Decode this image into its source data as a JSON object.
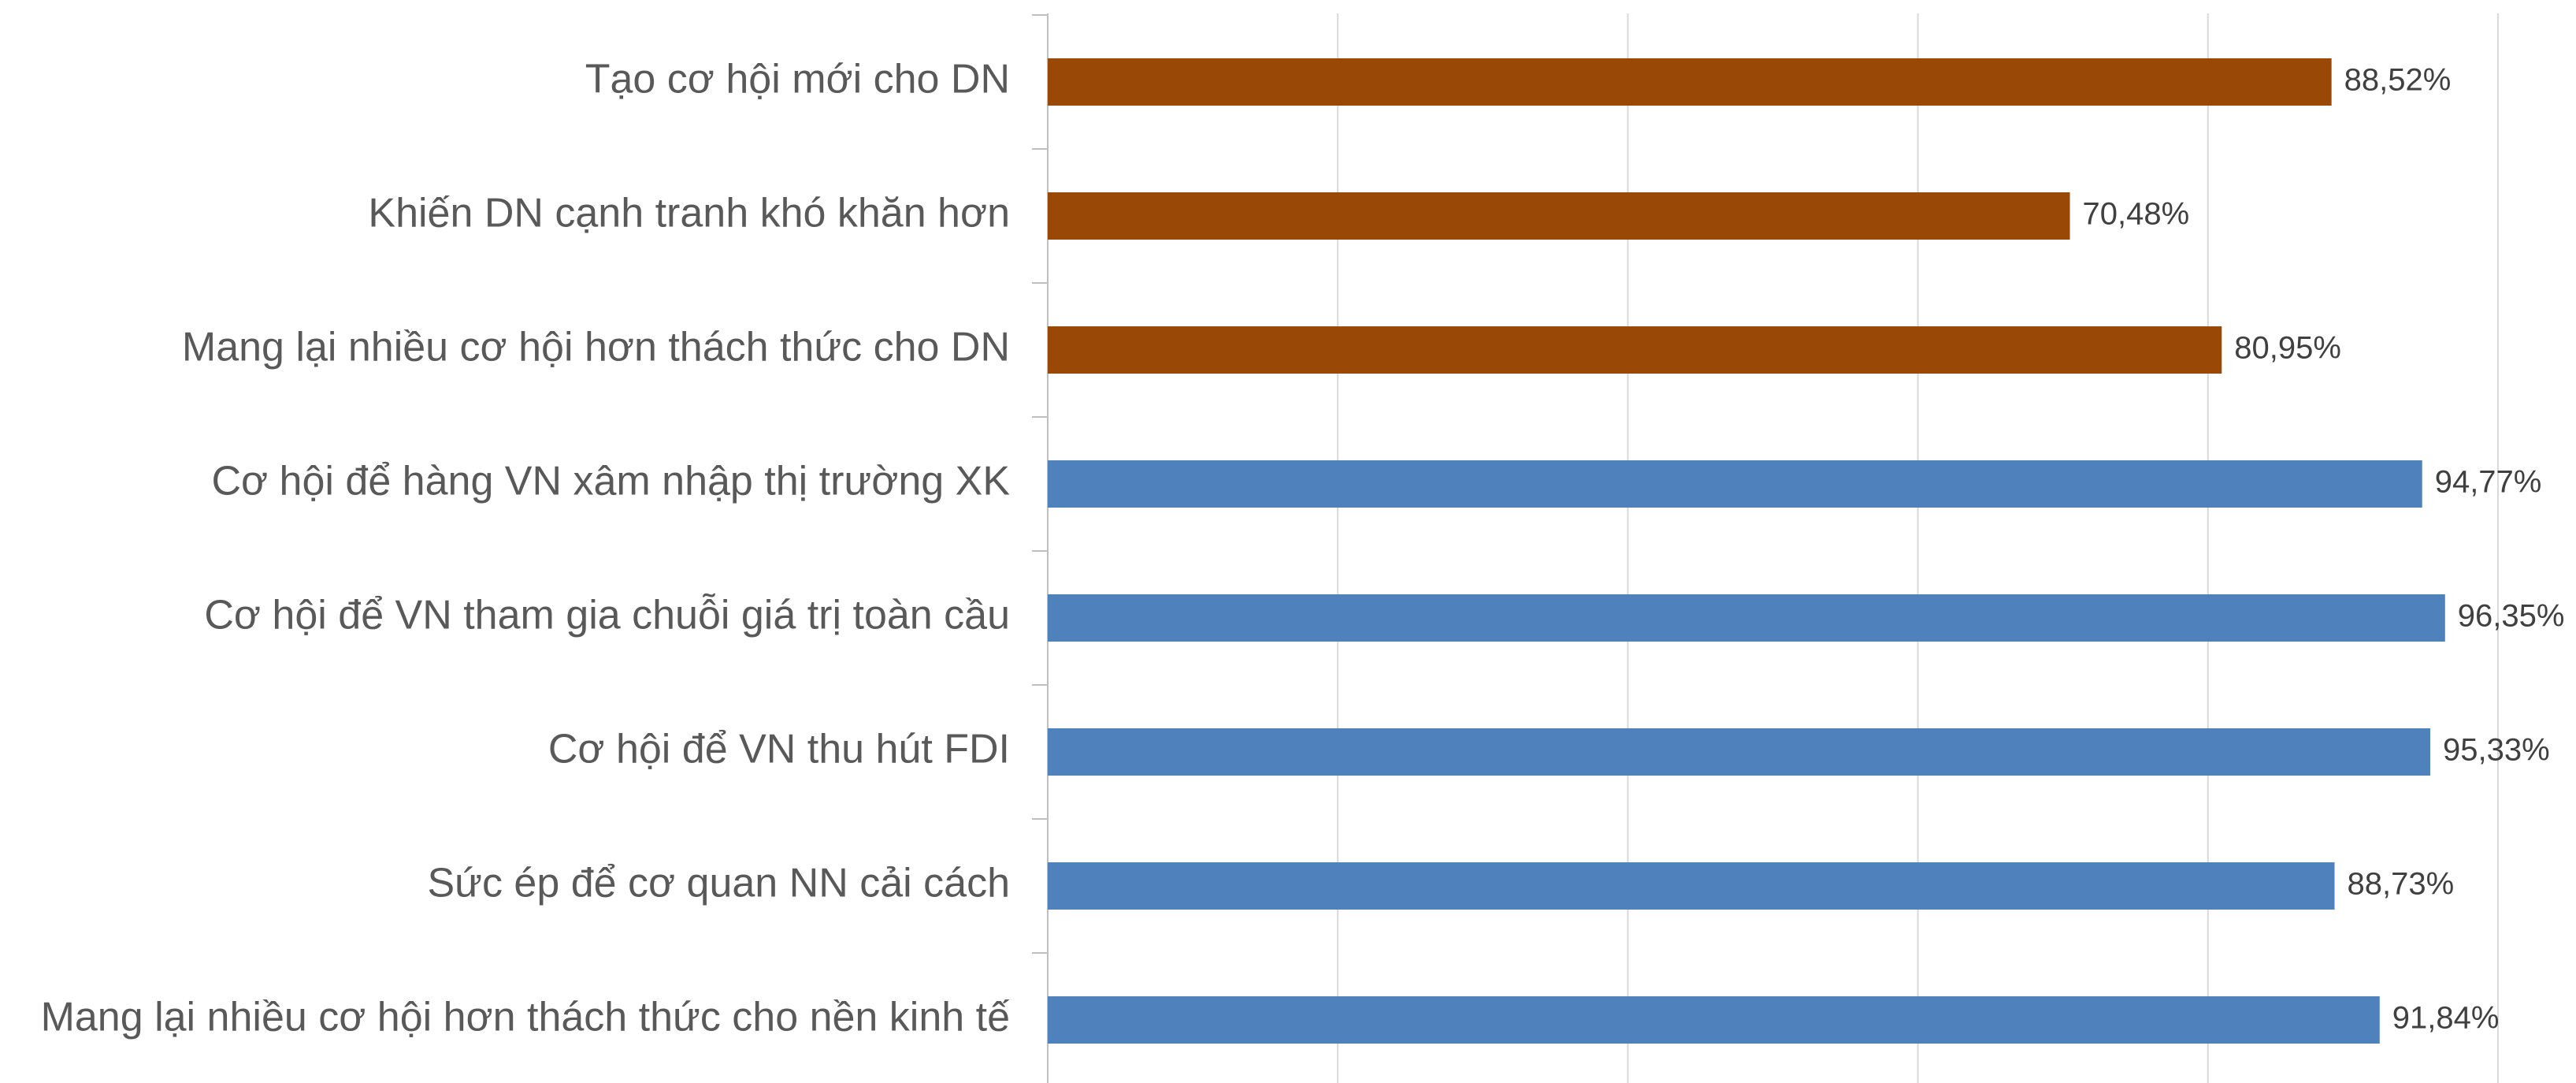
{
  "chart_data": {
    "type": "bar",
    "orientation": "horizontal",
    "categories": [
      "Tạo cơ hội mới cho DN",
      "Khiến DN cạnh tranh khó khăn hơn",
      "Mang lại nhiều cơ hội hơn thách thức cho DN",
      "Cơ hội để hàng VN xâm nhập thị trường XK",
      "Cơ hội để VN tham gia chuỗi giá trị toàn cầu",
      "Cơ hội để VN thu hút FDI",
      "Sức ép để cơ quan NN cải cách",
      "Mang lại nhiều cơ hội hơn thách thức cho nền kinh tế"
    ],
    "values": [
      88.52,
      70.48,
      80.95,
      94.77,
      96.35,
      95.33,
      88.73,
      91.84
    ],
    "value_labels": [
      "88,52%",
      "70,48%",
      "80,95%",
      "94,77%",
      "96,35%",
      "95,33%",
      "88,73%",
      "91,84%"
    ],
    "colors": [
      "#9a4806",
      "#9a4806",
      "#9a4806",
      "#4f81bd",
      "#4f81bd",
      "#4f81bd",
      "#4f81bd",
      "#4f81bd"
    ],
    "xlim": [
      0,
      100
    ],
    "xticks": [
      0,
      20,
      40,
      60,
      80,
      100
    ],
    "grid": true
  }
}
